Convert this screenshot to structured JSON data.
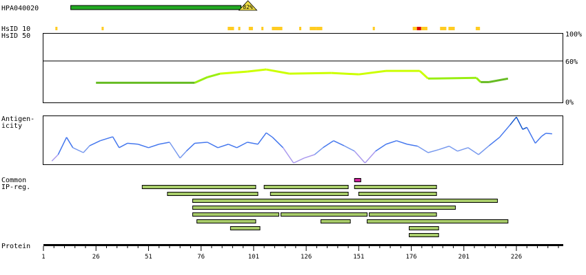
{
  "labels": {
    "antibody": "HPA040020",
    "hsid10": "HsID 10",
    "hsid50": "HsID 50",
    "antigenicity_1": "Antigen-",
    "antigenicity_2": "icity",
    "common": "Common",
    "ipreg": "IP-reg.",
    "protein": "Protein",
    "pct100": "100%",
    "pct60": "60%",
    "pct0": "0%"
  },
  "chart_data": {
    "type": "line",
    "protein_length": 248,
    "x_ticks": [
      "1",
      "26",
      "51",
      "76",
      "101",
      "126",
      "151",
      "176",
      "201",
      "226"
    ],
    "antigen": {
      "name": "HPA040020",
      "start": 14,
      "end": 95,
      "identity_label": "82%"
    },
    "hsid10_markers": [
      [
        7,
        7,
        "#ffcc22"
      ],
      [
        29,
        29,
        "#ffcc22"
      ],
      [
        89,
        91,
        "#ffcc22"
      ],
      [
        94,
        94,
        "#ffcc22"
      ],
      [
        99,
        100,
        "#ffcc22"
      ],
      [
        105,
        105,
        "#ffcc22"
      ],
      [
        110,
        112,
        "#ffcc22"
      ],
      [
        113,
        114,
        "#ffcc22"
      ],
      [
        123,
        123,
        "#ffcc22"
      ],
      [
        128,
        130,
        "#ffcc22"
      ],
      [
        131,
        133,
        "#ffcc22"
      ],
      [
        158,
        158,
        "#ffcc22"
      ],
      [
        177,
        178,
        "#ffcc22"
      ],
      [
        179,
        180,
        "#dd0000"
      ],
      [
        181,
        183,
        "#ffcc22"
      ],
      [
        190,
        192,
        "#ffcc22"
      ],
      [
        194,
        196,
        "#ffcc22"
      ],
      [
        207,
        208,
        "#ffcc22"
      ]
    ],
    "conservation": {
      "ylabel": "%",
      "ylim": [
        0,
        100
      ],
      "threshold": 60,
      "points": [
        [
          26,
          29
        ],
        [
          73,
          29
        ],
        [
          79,
          37
        ],
        [
          85,
          42
        ],
        [
          98,
          45
        ],
        [
          107,
          48
        ],
        [
          118,
          42
        ],
        [
          138,
          43
        ],
        [
          151,
          41
        ],
        [
          164,
          46
        ],
        [
          180,
          46
        ],
        [
          184,
          35
        ],
        [
          207,
          36
        ],
        [
          209,
          30
        ],
        [
          213,
          30
        ],
        [
          222,
          35
        ]
      ]
    },
    "antigenicity": {
      "ylim": [
        0,
        100
      ],
      "points": [
        [
          5,
          8
        ],
        [
          8,
          21
        ],
        [
          12,
          56
        ],
        [
          15,
          35
        ],
        [
          20,
          25
        ],
        [
          23,
          39
        ],
        [
          28,
          49
        ],
        [
          34,
          57
        ],
        [
          37,
          35
        ],
        [
          41,
          44
        ],
        [
          46,
          42
        ],
        [
          51,
          35
        ],
        [
          56,
          42
        ],
        [
          61,
          46
        ],
        [
          66,
          14
        ],
        [
          69,
          28
        ],
        [
          73,
          44
        ],
        [
          79,
          46
        ],
        [
          84,
          35
        ],
        [
          89,
          42
        ],
        [
          93,
          35
        ],
        [
          98,
          46
        ],
        [
          103,
          42
        ],
        [
          107,
          65
        ],
        [
          110,
          56
        ],
        [
          115,
          35
        ],
        [
          120,
          4
        ],
        [
          125,
          14
        ],
        [
          130,
          21
        ],
        [
          134,
          35
        ],
        [
          139,
          49
        ],
        [
          144,
          39
        ],
        [
          149,
          28
        ],
        [
          154,
          4
        ],
        [
          159,
          28
        ],
        [
          164,
          42
        ],
        [
          169,
          49
        ],
        [
          174,
          42
        ],
        [
          179,
          38
        ],
        [
          184,
          25
        ],
        [
          189,
          31
        ],
        [
          194,
          38
        ],
        [
          198,
          28
        ],
        [
          203,
          35
        ],
        [
          208,
          21
        ],
        [
          213,
          39
        ],
        [
          218,
          56
        ],
        [
          223,
          81
        ],
        [
          226,
          97
        ],
        [
          229,
          72
        ],
        [
          231,
          76
        ],
        [
          235,
          44
        ],
        [
          238,
          58
        ],
        [
          240,
          64
        ],
        [
          243,
          63
        ]
      ]
    },
    "common_regions": [
      [
        149,
        151
      ]
    ],
    "ip_regions": [
      [
        [
          48,
          102
        ],
        [
          106,
          146
        ],
        [
          149,
          188
        ]
      ],
      [
        [
          60,
          103
        ],
        [
          109,
          146
        ],
        [
          151,
          188
        ]
      ],
      [
        [
          72,
          217
        ]
      ],
      [
        [
          72,
          197
        ]
      ],
      [
        [
          72,
          113
        ],
        [
          114,
          155
        ],
        [
          156,
          188
        ]
      ],
      [
        [
          74,
          102
        ],
        [
          133,
          147
        ],
        [
          155,
          222
        ]
      ],
      [
        [
          90,
          104
        ],
        [
          175,
          189
        ]
      ],
      [
        [
          175,
          189
        ]
      ]
    ],
    "colors": {
      "antigen_bar": "#22aa22",
      "identity_triangle": "#eedd44",
      "ip_bar": "#a8cc6a",
      "common_bar": "#cc2299",
      "axis": "#000000"
    }
  }
}
